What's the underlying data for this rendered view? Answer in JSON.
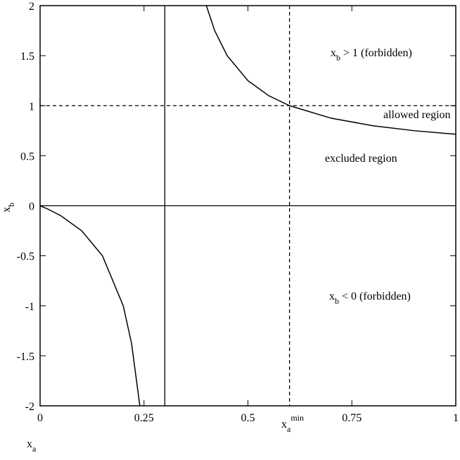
{
  "chart_data": {
    "type": "line",
    "x_label": {
      "base": "x",
      "sub": "a"
    },
    "y_label": {
      "base": "x",
      "sub": "b"
    },
    "x": [
      0,
      0.02,
      0.05,
      0.1,
      0.15,
      0.2,
      0.22,
      0.24,
      0.3,
      0.4,
      0.42,
      0.45,
      0.5,
      0.55,
      0.6,
      0.7,
      0.8,
      0.9,
      1
    ],
    "series": [
      {
        "color": "#000000",
        "values": [
          0,
          -0.036,
          -0.1,
          -0.25,
          -0.5,
          -1,
          -1.375,
          -2,
          null,
          2,
          1.75,
          1.5,
          1.25,
          1.1,
          1,
          0.875,
          0.8,
          0.75,
          0.714
        ]
      }
    ],
    "xlim": [
      0,
      1
    ],
    "ylim": [
      -2,
      2
    ],
    "xticks": [
      0,
      0.25,
      0.5,
      0.75,
      1
    ],
    "yticks": [
      2,
      1.5,
      1,
      0.5,
      0,
      -0.5,
      -1,
      -1.5,
      -2
    ],
    "reference_lines": [
      {
        "axis": "x",
        "value": 0.3,
        "style": "solid"
      },
      {
        "axis": "y",
        "value": 0,
        "style": "solid"
      },
      {
        "axis": "y",
        "value": 1,
        "style": "dashed"
      },
      {
        "axis": "x",
        "value": 0.6,
        "style": "dashed"
      }
    ],
    "annotations": [
      {
        "base": "x",
        "sub": "b",
        "text": " > 1  (forbidden)"
      },
      {
        "text": "allowed region"
      },
      {
        "text": "excluded region"
      },
      {
        "base": "x",
        "sub": "b",
        "text": " < 0  (forbidden)"
      },
      {
        "base": "x",
        "sub": "a",
        "sup": "min"
      }
    ]
  }
}
